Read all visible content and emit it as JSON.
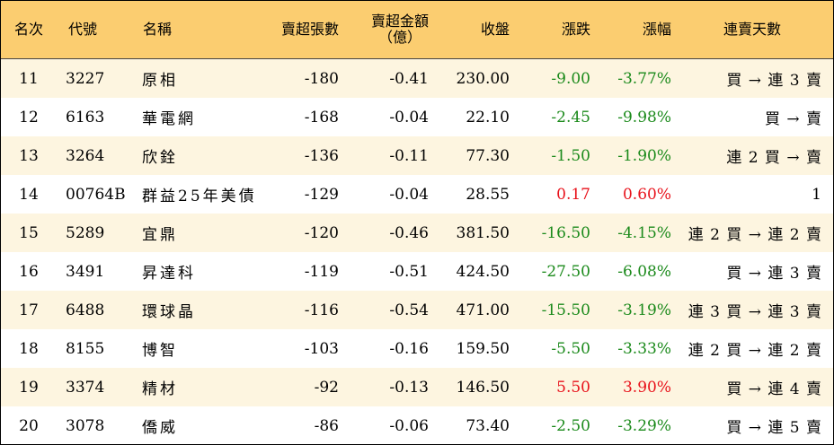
{
  "colors": {
    "header_bg": "#fbcd70",
    "odd_row_bg": "#fdf5e0",
    "even_row_bg": "#ffffff",
    "down": "#1b8a1b",
    "up": "#e8121b"
  },
  "header": {
    "rank": "名次",
    "code": "代號",
    "name": "名稱",
    "net_sell_lots": "賣超張數",
    "net_sell_amount_line1": "賣超金額",
    "net_sell_amount_line2": "（億）",
    "close": "收盤",
    "change": "漲跌",
    "change_pct": "漲幅",
    "streak": "連賣天數"
  },
  "rows": [
    {
      "rank": "11",
      "code": "3227",
      "name": "原相",
      "lots": "-180",
      "amount": "-0.41",
      "close": "230.00",
      "change": "-9.00",
      "pct": "-3.77%",
      "dir": "down",
      "streak": "買 → 連 3 賣"
    },
    {
      "rank": "12",
      "code": "6163",
      "name": "華電網",
      "lots": "-168",
      "amount": "-0.04",
      "close": "22.10",
      "change": "-2.45",
      "pct": "-9.98%",
      "dir": "down",
      "streak": "買 → 賣"
    },
    {
      "rank": "13",
      "code": "3264",
      "name": "欣銓",
      "lots": "-136",
      "amount": "-0.11",
      "close": "77.30",
      "change": "-1.50",
      "pct": "-1.90%",
      "dir": "down",
      "streak": "連 2 買 → 賣"
    },
    {
      "rank": "14",
      "code": "00764B",
      "name": "群益25年美債",
      "lots": "-129",
      "amount": "-0.04",
      "close": "28.55",
      "change": "0.17",
      "pct": "0.60%",
      "dir": "up",
      "streak": "1"
    },
    {
      "rank": "15",
      "code": "5289",
      "name": "宜鼎",
      "lots": "-120",
      "amount": "-0.46",
      "close": "381.50",
      "change": "-16.50",
      "pct": "-4.15%",
      "dir": "down",
      "streak": "連 2 買 → 連 2 賣"
    },
    {
      "rank": "16",
      "code": "3491",
      "name": "昇達科",
      "lots": "-119",
      "amount": "-0.51",
      "close": "424.50",
      "change": "-27.50",
      "pct": "-6.08%",
      "dir": "down",
      "streak": "買 → 連 3 賣"
    },
    {
      "rank": "17",
      "code": "6488",
      "name": "環球晶",
      "lots": "-116",
      "amount": "-0.54",
      "close": "471.00",
      "change": "-15.50",
      "pct": "-3.19%",
      "dir": "down",
      "streak": "連 3 買 → 連 3 賣"
    },
    {
      "rank": "18",
      "code": "8155",
      "name": "博智",
      "lots": "-103",
      "amount": "-0.16",
      "close": "159.50",
      "change": "-5.50",
      "pct": "-3.33%",
      "dir": "down",
      "streak": "連 2 買 → 連 2 賣"
    },
    {
      "rank": "19",
      "code": "3374",
      "name": "精材",
      "lots": "-92",
      "amount": "-0.13",
      "close": "146.50",
      "change": "5.50",
      "pct": "3.90%",
      "dir": "up",
      "streak": "買 → 連 4 賣"
    },
    {
      "rank": "20",
      "code": "3078",
      "name": "僑威",
      "lots": "-86",
      "amount": "-0.06",
      "close": "73.40",
      "change": "-2.50",
      "pct": "-3.29%",
      "dir": "down",
      "streak": "買 → 連 5 賣"
    }
  ]
}
